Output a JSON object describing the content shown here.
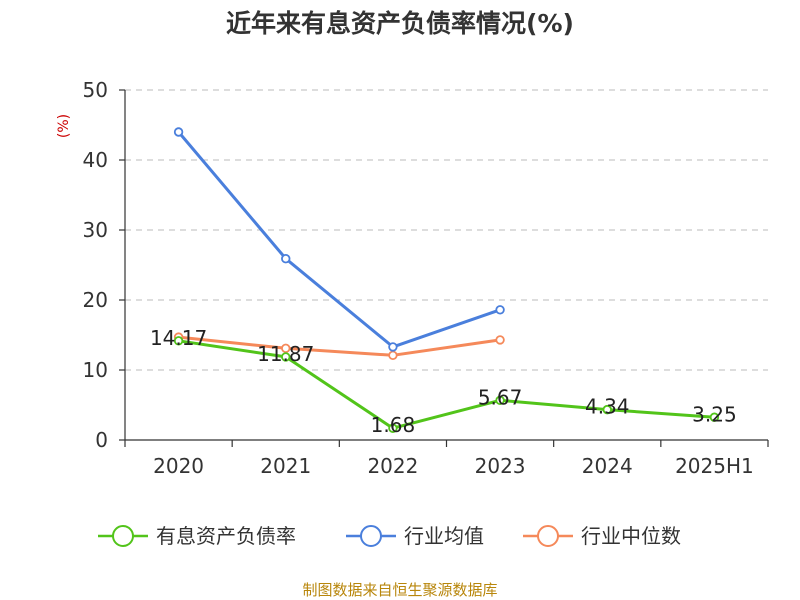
{
  "title": "近年来有息资产负债率情况(%)",
  "source_note": "制图数据来自恒生聚源数据库",
  "chart_data": {
    "type": "line",
    "title": "近年来有息资产负债率情况(%)",
    "ylabel": "(%)",
    "ylim": [
      0,
      50
    ],
    "y_ticks": [
      0,
      10,
      20,
      30,
      40,
      50
    ],
    "categories": [
      "2020",
      "2021",
      "2022",
      "2023",
      "2024",
      "2025H1"
    ],
    "grid": "horizontal dashed",
    "legend_position": "bottom",
    "series": [
      {
        "name": "有息资产负债率",
        "color": "#52c41a",
        "values": [
          14.17,
          11.87,
          1.68,
          5.67,
          4.34,
          3.25
        ],
        "labels": [
          "14.17",
          "11.87",
          "1.68",
          "5.67",
          "4.34",
          "3.25"
        ]
      },
      {
        "name": "行业均值",
        "color": "#4a7fdc",
        "values": [
          44.0,
          25.9,
          13.3,
          18.6,
          null,
          null
        ],
        "labels": []
      },
      {
        "name": "行业中位数",
        "color": "#f5895a",
        "values": [
          14.7,
          13.1,
          12.1,
          14.3,
          null,
          null
        ],
        "labels": []
      }
    ]
  }
}
